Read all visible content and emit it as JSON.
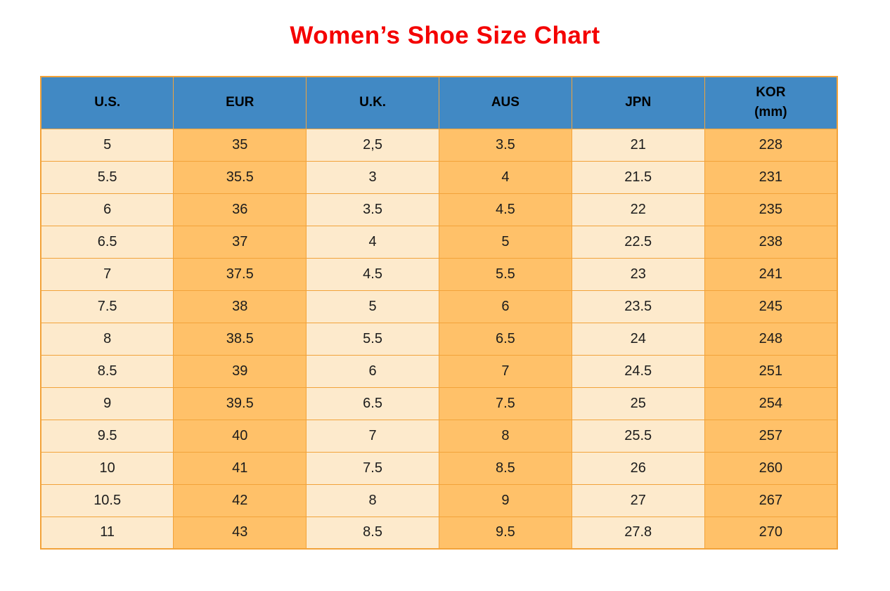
{
  "title": "Women’s Shoe Size Chart",
  "colors": {
    "title_red": "#f40000",
    "header_blue": "#4189c4",
    "cell_cream": "#fdeacc",
    "cell_orange": "#ffc169",
    "border_orange": "#f2a33a"
  },
  "chart_data": {
    "type": "table",
    "title": "Women’s Shoe Size Chart",
    "columns": [
      "U.S.",
      "EUR",
      "U.K.",
      "AUS",
      "JPN",
      "KOR\n(mm)"
    ],
    "rows": [
      [
        "5",
        "35",
        "2,5",
        "3.5",
        "21",
        "228"
      ],
      [
        "5.5",
        "35.5",
        "3",
        "4",
        "21.5",
        "231"
      ],
      [
        "6",
        "36",
        "3.5",
        "4.5",
        "22",
        "235"
      ],
      [
        "6.5",
        "37",
        "4",
        "5",
        "22.5",
        "238"
      ],
      [
        "7",
        "37.5",
        "4.5",
        "5.5",
        "23",
        "241"
      ],
      [
        "7.5",
        "38",
        "5",
        "6",
        "23.5",
        "245"
      ],
      [
        "8",
        "38.5",
        "5.5",
        "6.5",
        "24",
        "248"
      ],
      [
        "8.5",
        "39",
        "6",
        "7",
        "24.5",
        "251"
      ],
      [
        "9",
        "39.5",
        "6.5",
        "7.5",
        "25",
        "254"
      ],
      [
        "9.5",
        "40",
        "7",
        "8",
        "25.5",
        "257"
      ],
      [
        "10",
        "41",
        "7.5",
        "8.5",
        "26",
        "260"
      ],
      [
        "10.5",
        "42",
        "8",
        "9",
        "27",
        "267"
      ],
      [
        "11",
        "43",
        "8.5",
        "9.5",
        "27.8",
        "270"
      ]
    ],
    "layout": {
      "header_background": "#4189c4",
      "column_fill_pattern": [
        "cream",
        "orange",
        "cream",
        "orange",
        "cream",
        "orange"
      ],
      "grid": true
    }
  }
}
